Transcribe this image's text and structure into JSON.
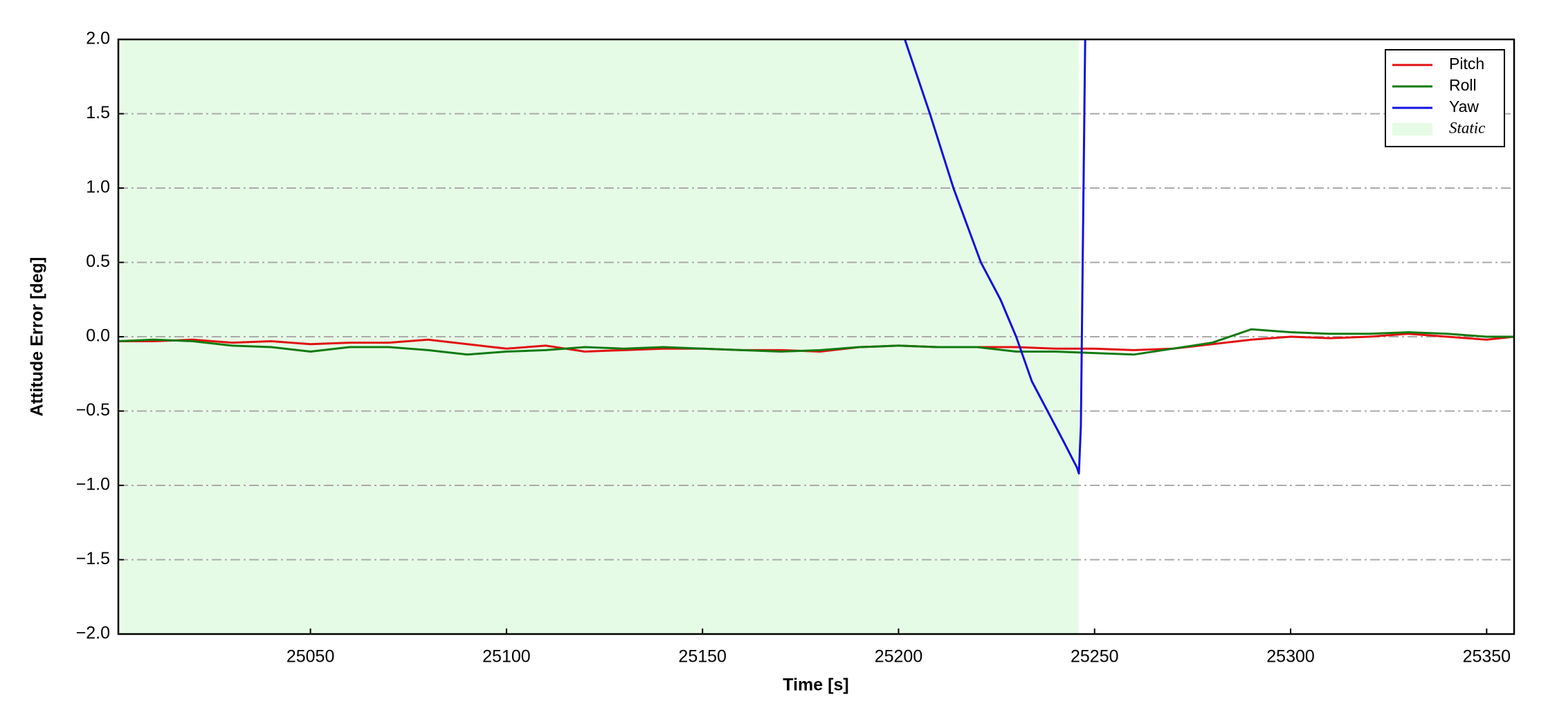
{
  "chart_data": {
    "type": "line",
    "xlabel": "Time [s]",
    "ylabel": "Attitude Error [deg]",
    "xlim": [
      25001,
      25357
    ],
    "ylim": [
      -2.0,
      2.0
    ],
    "xticks": [
      25050,
      25100,
      25150,
      25200,
      25250,
      25300,
      25350
    ],
    "yticks": [
      {
        "value": -2.0,
        "label": "−2.0"
      },
      {
        "value": -1.5,
        "label": "−1.5"
      },
      {
        "value": -1.0,
        "label": "−1.0"
      },
      {
        "value": -0.5,
        "label": "−0.5"
      },
      {
        "value": 0.0,
        "label": "0.0"
      },
      {
        "value": 0.5,
        "label": "0.5"
      },
      {
        "value": 1.0,
        "label": "1.0"
      },
      {
        "value": 1.5,
        "label": "1.5"
      },
      {
        "value": 2.0,
        "label": "2.0"
      }
    ],
    "grid": "y",
    "legend": "upper right",
    "spans": [
      {
        "name": "Static",
        "start": 25001,
        "end": 25246,
        "color": "#e6fbe6"
      }
    ],
    "series": [
      {
        "name": "Pitch",
        "color": "#e01010",
        "x": [
          25001,
          25010,
          25020,
          25030,
          25040,
          25050,
          25060,
          25070,
          25080,
          25090,
          25100,
          25110,
          25120,
          25130,
          25140,
          25150,
          25160,
          25170,
          25180,
          25190,
          25200,
          25210,
          25220,
          25230,
          25240,
          25250,
          25260,
          25270,
          25280,
          25290,
          25300,
          25310,
          25320,
          25330,
          25340,
          25350,
          25357
        ],
        "values": [
          -0.03,
          -0.03,
          -0.02,
          -0.04,
          -0.03,
          -0.05,
          -0.04,
          -0.04,
          -0.02,
          -0.05,
          -0.08,
          -0.06,
          -0.1,
          -0.09,
          -0.08,
          -0.08,
          -0.09,
          -0.09,
          -0.1,
          -0.07,
          -0.06,
          -0.07,
          -0.07,
          -0.07,
          -0.08,
          -0.08,
          -0.09,
          -0.08,
          -0.05,
          -0.02,
          0.0,
          -0.01,
          0.0,
          0.02,
          0.0,
          -0.02,
          0.0
        ]
      },
      {
        "name": "Roll",
        "color": "#107a10",
        "x": [
          25001,
          25010,
          25020,
          25030,
          25040,
          25050,
          25060,
          25070,
          25080,
          25090,
          25100,
          25110,
          25120,
          25130,
          25140,
          25150,
          25160,
          25170,
          25180,
          25190,
          25200,
          25210,
          25220,
          25230,
          25240,
          25250,
          25260,
          25270,
          25280,
          25290,
          25300,
          25310,
          25320,
          25330,
          25340,
          25350,
          25357
        ],
        "values": [
          -0.03,
          -0.02,
          -0.03,
          -0.06,
          -0.07,
          -0.1,
          -0.07,
          -0.07,
          -0.09,
          -0.12,
          -0.1,
          -0.09,
          -0.07,
          -0.08,
          -0.07,
          -0.08,
          -0.09,
          -0.1,
          -0.09,
          -0.07,
          -0.06,
          -0.07,
          -0.07,
          -0.1,
          -0.1,
          -0.11,
          -0.12,
          -0.08,
          -0.04,
          0.05,
          0.03,
          0.02,
          0.02,
          0.03,
          0.02,
          0.0,
          0.0
        ]
      },
      {
        "name": "Yaw",
        "color": "#1010e0",
        "x": [
          25201.6,
          25208,
          25214,
          25221,
          25226,
          25230,
          25234,
          25238,
          25242,
          25245.5,
          25246,
          25246.5,
          25247.6
        ],
        "values": [
          2.0,
          1.5,
          1.0,
          0.5,
          0.25,
          0.0,
          -0.3,
          -0.5,
          -0.7,
          -0.88,
          -0.92,
          -0.6,
          2.0
        ]
      }
    ]
  }
}
